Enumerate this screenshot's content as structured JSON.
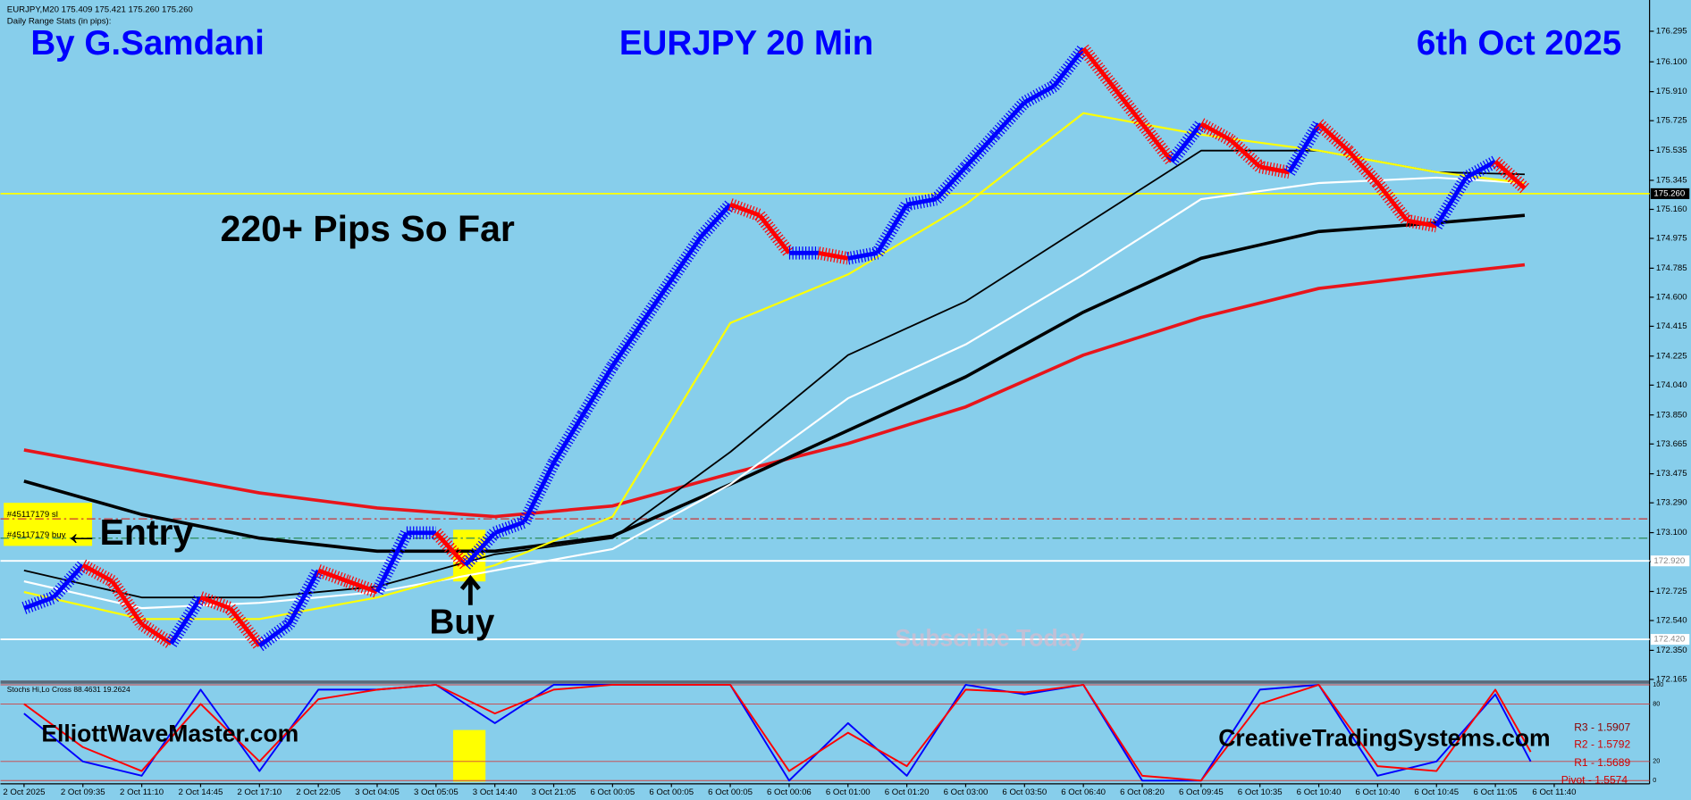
{
  "chart_data": {
    "type": "line",
    "title": "EURJPY 20 Min",
    "author": "By G.Samdani",
    "date": "6th Oct 2025",
    "symbol_info": "EURJPY,M20  175.409 175.421 175.260 175.260",
    "range_stats": "Daily Range Stats (in pips):",
    "annotations": [
      "220+ Pips So Far",
      "←Entry",
      "Buy",
      "Subscribe Today",
      "ElliottWaveMaster.com",
      "CreativeTradingSystems.com"
    ],
    "trade_labels": [
      "#45117179 sl",
      "#45117179 buy"
    ],
    "ylim": [
      172.158,
      176.494
    ],
    "xlim": [
      -0.4,
      27.62
    ],
    "yticks": [
      176.295,
      {
        "value": 176.1,
        "label": "176.100"
      },
      {
        "value": 175.91,
        "label": "175.910"
      },
      175.725,
      175.535,
      175.345,
      {
        "value": 175.16,
        "label": "175.160"
      },
      174.975,
      174.785,
      {
        "value": 174.6,
        "label": "174.600"
      },
      174.415,
      174.225,
      {
        "value": 174.04,
        "label": "174.040"
      },
      {
        "value": 173.85,
        "label": "173.850"
      },
      173.665,
      173.475,
      {
        "value": 173.29,
        "label": "173.290"
      },
      {
        "value": 173.1,
        "label": "173.100"
      },
      172.915,
      172.725,
      {
        "value": 172.54,
        "label": "172.540"
      },
      {
        "value": 172.35,
        "label": "172.350"
      },
      172.165
    ],
    "categories": [
      "2 Oct 2025",
      "2 Oct 09:35",
      "2 Oct 11:10",
      "2 Oct 14:45",
      "2 Oct 17:10",
      "2 Oct 22:05",
      "3 Oct 04:05",
      "3 Oct 05:05",
      "3 Oct 14:40",
      "3 Oct 21:05",
      "6 Oct 00:05",
      "6 Oct 00:05",
      "6 Oct 00:05",
      "6 Oct 00:06",
      "6 Oct 01:00",
      "6 Oct 01:20",
      "6 Oct 03:00",
      "6 Oct 03:50",
      "6 Oct 06:40",
      "6 Oct 08:20",
      "6 Oct 09:45",
      "6 Oct 10:35",
      "6 Oct 10:40",
      "6 Oct 10:40",
      "6 Oct 10:45",
      "6 Oct 11:05",
      "6 Oct 11:40"
    ],
    "price": {
      "up_color": "#0000ff",
      "down_color": "#ff0000",
      "x": [
        0,
        0.5,
        1,
        1.5,
        2,
        2.5,
        3,
        3.5,
        4,
        4.5,
        5,
        5.5,
        6,
        6.5,
        7,
        7.5,
        8,
        8.5,
        9,
        9.5,
        10,
        10.5,
        11,
        11.5,
        12,
        12.5,
        13,
        13.5,
        14,
        14.5,
        15,
        15.5,
        16,
        16.5,
        17,
        17.5,
        18,
        18.5,
        19,
        19.5,
        20,
        20.5,
        21,
        21.5,
        22,
        22.5,
        23,
        23.5,
        24,
        24.5,
        25,
        25.5
      ],
      "values": [
        172.619,
        172.687,
        172.893,
        172.79,
        172.516,
        172.393,
        172.687,
        172.619,
        172.379,
        172.516,
        172.859,
        172.79,
        172.722,
        173.099,
        173.099,
        172.893,
        173.099,
        173.168,
        173.545,
        173.853,
        174.162,
        174.436,
        174.711,
        174.985,
        175.191,
        175.122,
        174.882,
        174.882,
        174.848,
        174.882,
        175.191,
        175.225,
        175.431,
        175.636,
        175.842,
        175.945,
        176.185,
        175.945,
        175.705,
        175.465,
        175.705,
        175.602,
        175.431,
        175.396,
        175.705,
        175.534,
        175.328,
        175.088,
        175.054,
        175.362,
        175.465,
        175.294
      ]
    },
    "series": [
      {
        "color": "#e8151b",
        "width": 3,
        "x": [
          0,
          2,
          4,
          6,
          8,
          10,
          12,
          14,
          16,
          18,
          20,
          22,
          24,
          25.5
        ],
        "values": [
          173.627,
          173.49,
          173.353,
          173.257,
          173.202,
          173.27,
          173.476,
          173.668,
          173.901,
          174.231,
          174.471,
          174.656,
          174.745,
          174.807
        ]
      },
      {
        "color": "#000000",
        "width": 3,
        "x": [
          0,
          2,
          4,
          6,
          8,
          10,
          12,
          14,
          16,
          18,
          20,
          22,
          24,
          25.5
        ],
        "values": [
          173.428,
          173.216,
          173.065,
          172.982,
          172.982,
          173.078,
          173.408,
          173.751,
          174.093,
          174.505,
          174.848,
          175.019,
          175.074,
          175.122
        ]
      },
      {
        "color": "#000000",
        "width": 1.5,
        "x": [
          0,
          2,
          4,
          6,
          8,
          10,
          12,
          14,
          16,
          18,
          20,
          22,
          24,
          25.5
        ],
        "values": [
          172.859,
          172.687,
          172.687,
          172.756,
          172.962,
          173.065,
          173.614,
          174.231,
          174.574,
          175.054,
          175.534,
          175.534,
          175.397,
          175.383
        ]
      },
      {
        "color": "#ffffff",
        "width": 1.8,
        "x": [
          0,
          2,
          4,
          6,
          8,
          10,
          12,
          14,
          16,
          18,
          20,
          22,
          24,
          25.5
        ],
        "values": [
          172.79,
          172.619,
          172.653,
          172.722,
          172.859,
          172.996,
          173.408,
          173.956,
          174.299,
          174.745,
          175.225,
          175.328,
          175.362,
          175.328
        ]
      },
      {
        "color": "#ffff00",
        "width": 1.8,
        "x": [
          0,
          2,
          4,
          6,
          8,
          10,
          12,
          14,
          16,
          18,
          20,
          22,
          24,
          25.5
        ],
        "values": [
          172.722,
          172.55,
          172.55,
          172.687,
          172.893,
          173.202,
          174.436,
          174.745,
          175.191,
          175.773,
          175.636,
          175.534,
          175.397,
          175.328
        ]
      }
    ],
    "levels": [
      {
        "value": 175.26,
        "label": "175.260",
        "color": "#ffff00"
      },
      {
        "value": 172.92,
        "label": "172.920",
        "color": "#ffffff"
      },
      {
        "value": 172.42,
        "label": "172.420",
        "color": "#ffffff"
      },
      {
        "value": 173.188,
        "color": "#cc3333",
        "style": "dashdot"
      },
      {
        "value": 173.065,
        "color": "#2e8b57",
        "style": "dashdot"
      }
    ],
    "indicator": {
      "label": "Stochs Hi,Lo Cross 88.4631 19.2624",
      "ylim": [
        0,
        100
      ],
      "yticks": [
        0,
        20,
        80,
        100
      ],
      "series": [
        {
          "color": "#0000ff",
          "x": [
            0,
            1,
            2,
            3,
            4,
            5,
            6,
            7,
            8,
            9,
            10,
            11,
            12,
            13,
            14,
            15,
            16,
            17,
            18,
            19,
            20,
            21,
            22,
            23,
            24,
            25,
            25.6
          ],
          "values": [
            70,
            20,
            5,
            95,
            10,
            95,
            95,
            100,
            60,
            100,
            100,
            100,
            100,
            0,
            60,
            5,
            100,
            90,
            100,
            0,
            0,
            95,
            100,
            5,
            20,
            90,
            20
          ]
        },
        {
          "color": "#ff0000",
          "x": [
            0,
            1,
            2,
            3,
            4,
            5,
            6,
            7,
            8,
            9,
            10,
            11,
            12,
            13,
            14,
            15,
            16,
            17,
            18,
            19,
            20,
            21,
            22,
            23,
            24,
            25,
            25.6
          ],
          "values": [
            80,
            35,
            10,
            80,
            20,
            85,
            95,
            100,
            70,
            95,
            100,
            100,
            100,
            10,
            50,
            15,
            95,
            92,
            100,
            5,
            0,
            80,
            100,
            15,
            10,
            95,
            30
          ]
        }
      ]
    },
    "pivots": [
      "R3 - 1.5907",
      "R2 - 1.5792",
      "R1 - 1.5689",
      "Pivot - 1.5574"
    ]
  }
}
